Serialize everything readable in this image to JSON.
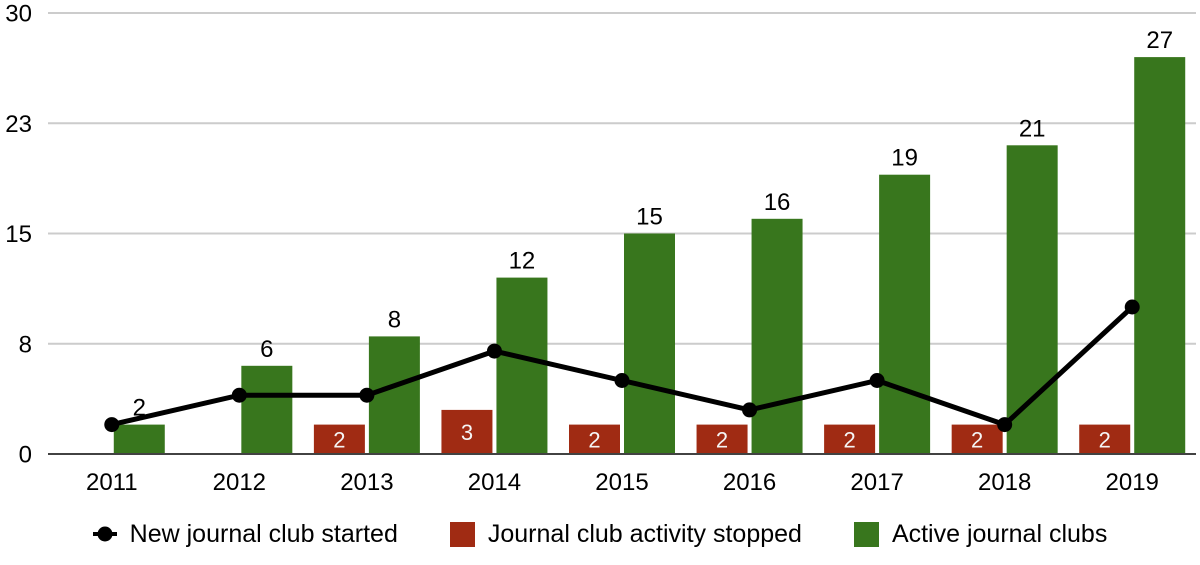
{
  "chart_data": {
    "type": "combo",
    "title": "",
    "categories": [
      "2011",
      "2012",
      "2013",
      "2014",
      "2015",
      "2016",
      "2017",
      "2018",
      "2019"
    ],
    "series": [
      {
        "name": "New journal club started",
        "type": "line",
        "color": "#000000",
        "marker": "circle",
        "values": [
          2,
          4,
          4,
          7,
          5,
          3,
          5,
          2,
          10
        ],
        "labels_visible": false
      },
      {
        "name": "Journal club activity stopped",
        "type": "bar",
        "color": "#a02b13",
        "label_color": "#f5f5f5",
        "label_position": "inside",
        "values": [
          null,
          null,
          2,
          3,
          2,
          2,
          2,
          2,
          2
        ]
      },
      {
        "name": "Active journal clubs",
        "type": "bar",
        "color": "#38761d",
        "label_color": "#000000",
        "label_position": "above",
        "values": [
          2,
          6,
          8,
          12,
          15,
          16,
          19,
          21,
          27
        ]
      }
    ],
    "y_axis": {
      "range": [
        0,
        30
      ],
      "ticks": [
        {
          "value": 0,
          "label": "0"
        },
        {
          "value": 7.5,
          "label": "8"
        },
        {
          "value": 15,
          "label": "15"
        },
        {
          "value": 22.5,
          "label": "23"
        },
        {
          "value": 30,
          "label": "30"
        }
      ]
    },
    "grid": true,
    "legend_position": "bottom",
    "colors": {
      "gridline": "#cccccc",
      "axis_line": "#424242",
      "text": "#000000"
    }
  }
}
